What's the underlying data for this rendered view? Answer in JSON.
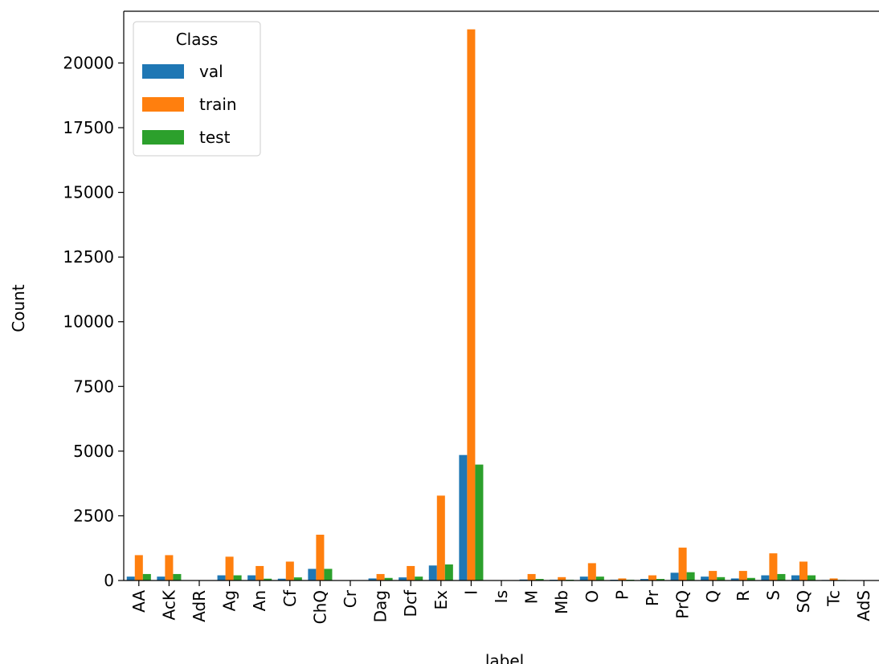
{
  "chart_data": {
    "type": "bar",
    "xlabel": "label",
    "ylabel": "Count",
    "ylim": [
      0,
      22000
    ],
    "yticks": [
      0,
      2500,
      5000,
      7500,
      10000,
      12500,
      15000,
      17500,
      20000
    ],
    "categories": [
      "AA",
      "AcK",
      "AdR",
      "Ag",
      "An",
      "Cf",
      "ChQ",
      "Cr",
      "Dag",
      "Dcf",
      "Ex",
      "I",
      "Is",
      "M",
      "Mb",
      "O",
      "P",
      "Pr",
      "PrQ",
      "Q",
      "R",
      "S",
      "SQ",
      "Tc",
      "AdS"
    ],
    "legend": {
      "title": "Class",
      "placement": "upper-left"
    },
    "series": [
      {
        "name": "val",
        "color": "#1f77b4",
        "values": [
          150,
          150,
          0,
          200,
          200,
          70,
          450,
          0,
          80,
          120,
          580,
          4850,
          0,
          40,
          30,
          150,
          30,
          60,
          300,
          150,
          80,
          200,
          200,
          20,
          0
        ]
      },
      {
        "name": "train",
        "color": "#ff7f0e",
        "values": [
          980,
          980,
          0,
          920,
          560,
          730,
          1770,
          0,
          250,
          560,
          3280,
          21300,
          0,
          250,
          130,
          670,
          80,
          200,
          1270,
          370,
          370,
          1050,
          730,
          80,
          0
        ]
      },
      {
        "name": "test",
        "color": "#2ca02c",
        "values": [
          250,
          250,
          0,
          200,
          70,
          120,
          450,
          0,
          100,
          150,
          620,
          4480,
          0,
          60,
          30,
          150,
          30,
          60,
          320,
          130,
          100,
          250,
          200,
          20,
          0
        ]
      }
    ]
  }
}
